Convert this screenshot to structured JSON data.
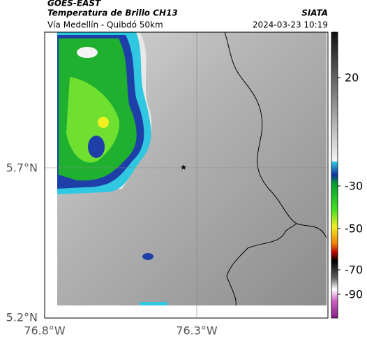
{
  "header": {
    "source": "GOES-EAST",
    "title": "Temperatura de Brillo CH13",
    "route": "Vía Medellín - Quibdó 50km",
    "agency": "SIATA",
    "timestamp": "2024-03-23 10:19"
  },
  "map": {
    "lat_labels": [
      "5.7°N",
      "5.2°N"
    ],
    "lon_labels": [
      "76.8°W",
      "76.3°W"
    ]
  },
  "colorbar": {
    "ticks": [
      20,
      -30,
      -50,
      -70,
      -90
    ]
  }
}
